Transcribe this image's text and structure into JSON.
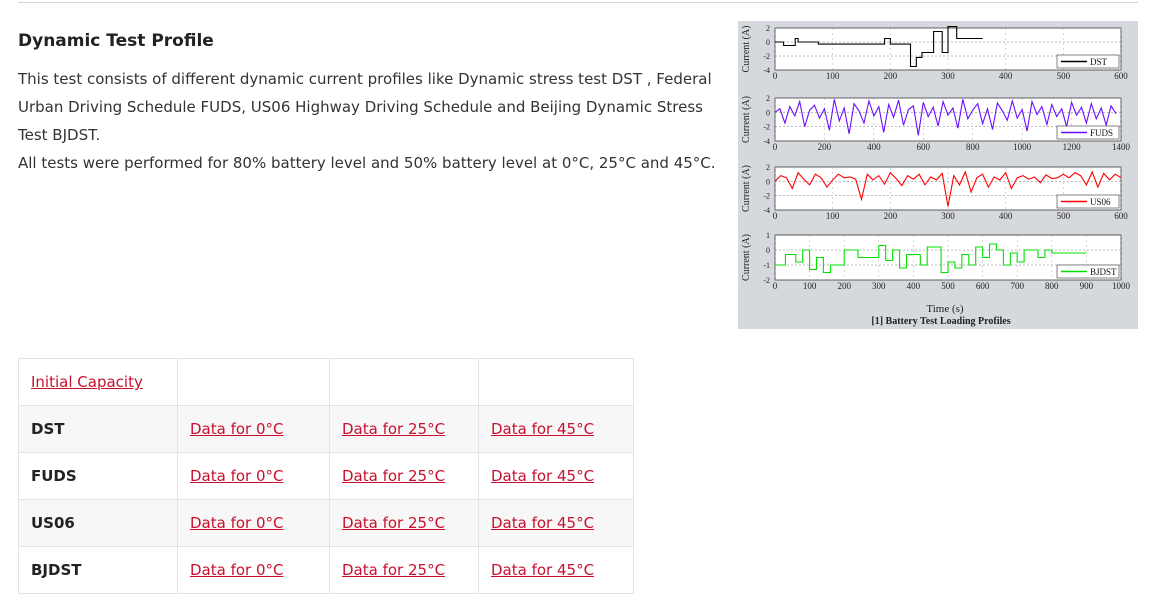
{
  "section": {
    "title": "Dynamic Test Profile",
    "description_lines": [
      "This test consists of different dynamic current profiles like Dynamic stress test DST , Federal",
      "Urban Driving Schedule FUDS, US06 Highway Driving Schedule and Beijing Dynamic Stress",
      "Test BJDST.",
      "All tests were performed for 80% battery level and 50% battery level at 0°C, 25°C and 45°C."
    ]
  },
  "figure": {
    "caption": "[1] Battery Test Loading Profiles",
    "xlabel": "Time (s)"
  },
  "chart_data": [
    {
      "type": "line",
      "color": "#000000",
      "ylabel": "Current (A)",
      "legend": "DST",
      "legend_position": "bottom-right",
      "xlim": [
        0,
        600
      ],
      "ylim": [
        -4,
        2
      ],
      "xticks": [
        0,
        100,
        200,
        300,
        400,
        500,
        600
      ],
      "xticklabels": [
        "0",
        "100",
        "200",
        "300",
        "400",
        "500",
        "600"
      ],
      "yticks": [
        2,
        0,
        -2,
        -4
      ],
      "yticklabels": [
        "2",
        "0",
        "-2",
        "-4"
      ],
      "ygrid": [
        2,
        0,
        -2,
        -4
      ],
      "series": [
        {
          "x": [
            0,
            15,
            15,
            35,
            35,
            40,
            40,
            75,
            75,
            190,
            190,
            200,
            200,
            235,
            235,
            245,
            245,
            255,
            255,
            275,
            275,
            290,
            290,
            300,
            300,
            315,
            315,
            360
          ],
          "y": [
            0,
            0,
            -0.5,
            -0.5,
            0.5,
            0.5,
            0,
            0,
            -0.3,
            -0.3,
            0.5,
            0.5,
            -0.3,
            -0.3,
            -3.5,
            -3.5,
            -2.2,
            -2.2,
            -1.5,
            -1.5,
            1.5,
            1.5,
            -1.5,
            -1.5,
            2.2,
            2.2,
            0.5,
            0.5
          ]
        }
      ]
    },
    {
      "type": "line",
      "color": "#6a0dff",
      "ylabel": "Current (A)",
      "legend": "FUDS",
      "legend_position": "bottom-right",
      "xlim": [
        0,
        1400
      ],
      "ylim": [
        -4,
        2
      ],
      "xticks": [
        0,
        200,
        400,
        600,
        800,
        1000,
        1200,
        1400
      ],
      "xticklabels": [
        "0",
        "200",
        "400",
        "600",
        "800",
        "1000",
        "1200",
        "1400"
      ],
      "yticks": [
        2,
        0,
        -2,
        -4
      ],
      "yticklabels": [
        "2",
        "0",
        "-2",
        "-4"
      ],
      "ygrid": [
        2,
        0,
        -2,
        -4
      ],
      "series": [
        {
          "x": [
            0,
            20,
            40,
            60,
            80,
            100,
            120,
            140,
            160,
            180,
            200,
            220,
            240,
            260,
            280,
            300,
            320,
            340,
            360,
            380,
            400,
            420,
            440,
            460,
            480,
            500,
            520,
            540,
            560,
            580,
            600,
            620,
            640,
            660,
            680,
            700,
            720,
            740,
            760,
            780,
            800,
            820,
            840,
            860,
            880,
            900,
            920,
            940,
            960,
            980,
            1000,
            1020,
            1040,
            1060,
            1080,
            1100,
            1120,
            1140,
            1160,
            1180,
            1200,
            1220,
            1240,
            1260,
            1280,
            1300,
            1320,
            1340,
            1360,
            1380
          ],
          "y": [
            0,
            0.5,
            -1.5,
            0.8,
            -0.5,
            1.5,
            -2,
            0.3,
            1,
            -0.8,
            0.5,
            -2.5,
            1.8,
            -1.2,
            0.6,
            -3,
            1.2,
            0.2,
            -1.5,
            1.6,
            -0.5,
            0.8,
            -2.8,
            1.1,
            -0.7,
            1.7,
            -1.8,
            0.4,
            0.9,
            -3.2,
            1.4,
            -0.6,
            0.7,
            -1.9,
            1.5,
            -0.4,
            0.6,
            -2.2,
            1.8,
            -0.9,
            0.3,
            1.2,
            -1.6,
            0.5,
            -2.4,
            1.3,
            0.2,
            -1.1,
            1.6,
            -0.8,
            0.4,
            -2.6,
            1.5,
            -0.3,
            0.8,
            -1.7,
            1.1,
            -0.6,
            0.5,
            -2,
            1.4,
            -0.4,
            0.7,
            -1.5,
            1.2,
            -0.9,
            0.6,
            -1.8,
            0.9,
            -0.2
          ]
        }
      ]
    },
    {
      "type": "line",
      "color": "#ff0000",
      "ylabel": "Current (A)",
      "legend": "US06",
      "legend_position": "bottom-right",
      "xlim": [
        0,
        600
      ],
      "ylim": [
        -4,
        2
      ],
      "xticks": [
        0,
        100,
        200,
        300,
        400,
        500,
        600
      ],
      "xticklabels": [
        "0",
        "100",
        "200",
        "300",
        "400",
        "500",
        "600"
      ],
      "yticks": [
        2,
        0,
        -2,
        -4
      ],
      "yticklabels": [
        "2",
        "0",
        "-2",
        "-4"
      ],
      "ygrid": [
        2,
        0,
        -2,
        -4
      ],
      "series": [
        {
          "x": [
            0,
            10,
            20,
            30,
            40,
            50,
            60,
            70,
            80,
            90,
            100,
            110,
            120,
            130,
            140,
            150,
            160,
            170,
            180,
            190,
            200,
            210,
            220,
            230,
            240,
            250,
            260,
            270,
            280,
            290,
            300,
            310,
            320,
            330,
            340,
            350,
            360,
            370,
            380,
            390,
            400,
            410,
            420,
            430,
            440,
            450,
            460,
            470,
            480,
            490,
            500,
            510,
            520,
            530,
            540,
            550,
            560,
            570,
            580,
            590,
            600
          ],
          "y": [
            0,
            0.8,
            0.5,
            -1,
            1.2,
            0.3,
            -0.5,
            1,
            0.5,
            -0.8,
            0.2,
            1,
            0.5,
            0.6,
            0.3,
            -2.5,
            1,
            0.2,
            0.8,
            -0.4,
            1.2,
            0.4,
            -0.6,
            0.8,
            0.3,
            1,
            -0.5,
            0.6,
            0.2,
            1.1,
            -3.5,
            0.8,
            -0.5,
            1.3,
            -1.5,
            0.5,
            1,
            -0.8,
            0.6,
            0.2,
            1.2,
            -1,
            0.5,
            0.8,
            0.3,
            0.6,
            -0.2,
            0.9,
            0.4,
            0.5,
            1,
            0.5,
            1.2,
            0.8,
            -0.5,
            1.3,
            -0.8,
            1.1,
            0.2,
            1,
            0.5
          ]
        }
      ]
    },
    {
      "type": "line",
      "color": "#00e000",
      "ylabel": "Current (A)",
      "legend": "BJDST",
      "legend_position": "bottom-right",
      "xlim": [
        0,
        1000
      ],
      "ylim": [
        -2,
        1
      ],
      "xticks": [
        0,
        100,
        200,
        300,
        400,
        500,
        600,
        700,
        800,
        900,
        1000
      ],
      "xticklabels": [
        "0",
        "100",
        "200",
        "300",
        "400",
        "500",
        "600",
        "700",
        "800",
        "900",
        "1000"
      ],
      "yticks": [
        1,
        0,
        -1,
        -2
      ],
      "yticklabels": [
        "1",
        "0",
        "-1",
        "-2"
      ],
      "ygrid": [
        0,
        -1,
        -2
      ],
      "series": [
        {
          "x": [
            0,
            30,
            30,
            60,
            60,
            80,
            80,
            100,
            100,
            120,
            120,
            140,
            140,
            160,
            160,
            200,
            200,
            240,
            240,
            300,
            300,
            320,
            320,
            340,
            340,
            360,
            360,
            380,
            380,
            420,
            420,
            440,
            440,
            480,
            480,
            500,
            500,
            520,
            520,
            540,
            540,
            560,
            560,
            580,
            580,
            600,
            600,
            620,
            620,
            640,
            640,
            660,
            660,
            680,
            680,
            700,
            700,
            720,
            720,
            760,
            760,
            780,
            780,
            800,
            800,
            900
          ],
          "y": [
            -1,
            -1,
            -0.3,
            -0.3,
            -0.8,
            -0.8,
            0,
            0,
            -1.3,
            -1.3,
            -0.5,
            -0.5,
            -1.5,
            -1.5,
            -1,
            -1,
            0,
            0,
            -0.5,
            -0.5,
            0.3,
            0.3,
            -0.7,
            -0.7,
            0,
            0,
            -1.2,
            -1.2,
            -0.3,
            -0.3,
            -1,
            -1,
            0.2,
            0.2,
            -1.5,
            -1.5,
            -0.8,
            -0.8,
            -1.2,
            -1.2,
            -0.3,
            -0.3,
            -1,
            -1,
            0.2,
            0.2,
            -0.5,
            -0.5,
            0.4,
            0.4,
            0,
            0,
            -1,
            -1,
            -0.2,
            -0.2,
            -0.8,
            -0.8,
            0,
            0,
            -0.5,
            -0.5,
            0,
            0,
            -0.2,
            -0.2
          ]
        }
      ]
    }
  ],
  "table": {
    "header_link": "Initial Capacity",
    "rows": [
      {
        "label": "DST",
        "links": [
          "Data for 0°C",
          "Data for 25°C",
          "Data for 45°C"
        ]
      },
      {
        "label": "FUDS",
        "links": [
          "Data for 0°C",
          "Data for 25°C",
          "Data for 45°C"
        ]
      },
      {
        "label": "US06",
        "links": [
          "Data for 0°C",
          "Data for 25°C",
          "Data for 45°C"
        ]
      },
      {
        "label": "BJDST",
        "links": [
          "Data for 0°C",
          "Data for 25°C",
          "Data for 45°C"
        ]
      }
    ]
  },
  "colors": {
    "link": "#c8102e",
    "figure_background": "#d5d8dd"
  }
}
